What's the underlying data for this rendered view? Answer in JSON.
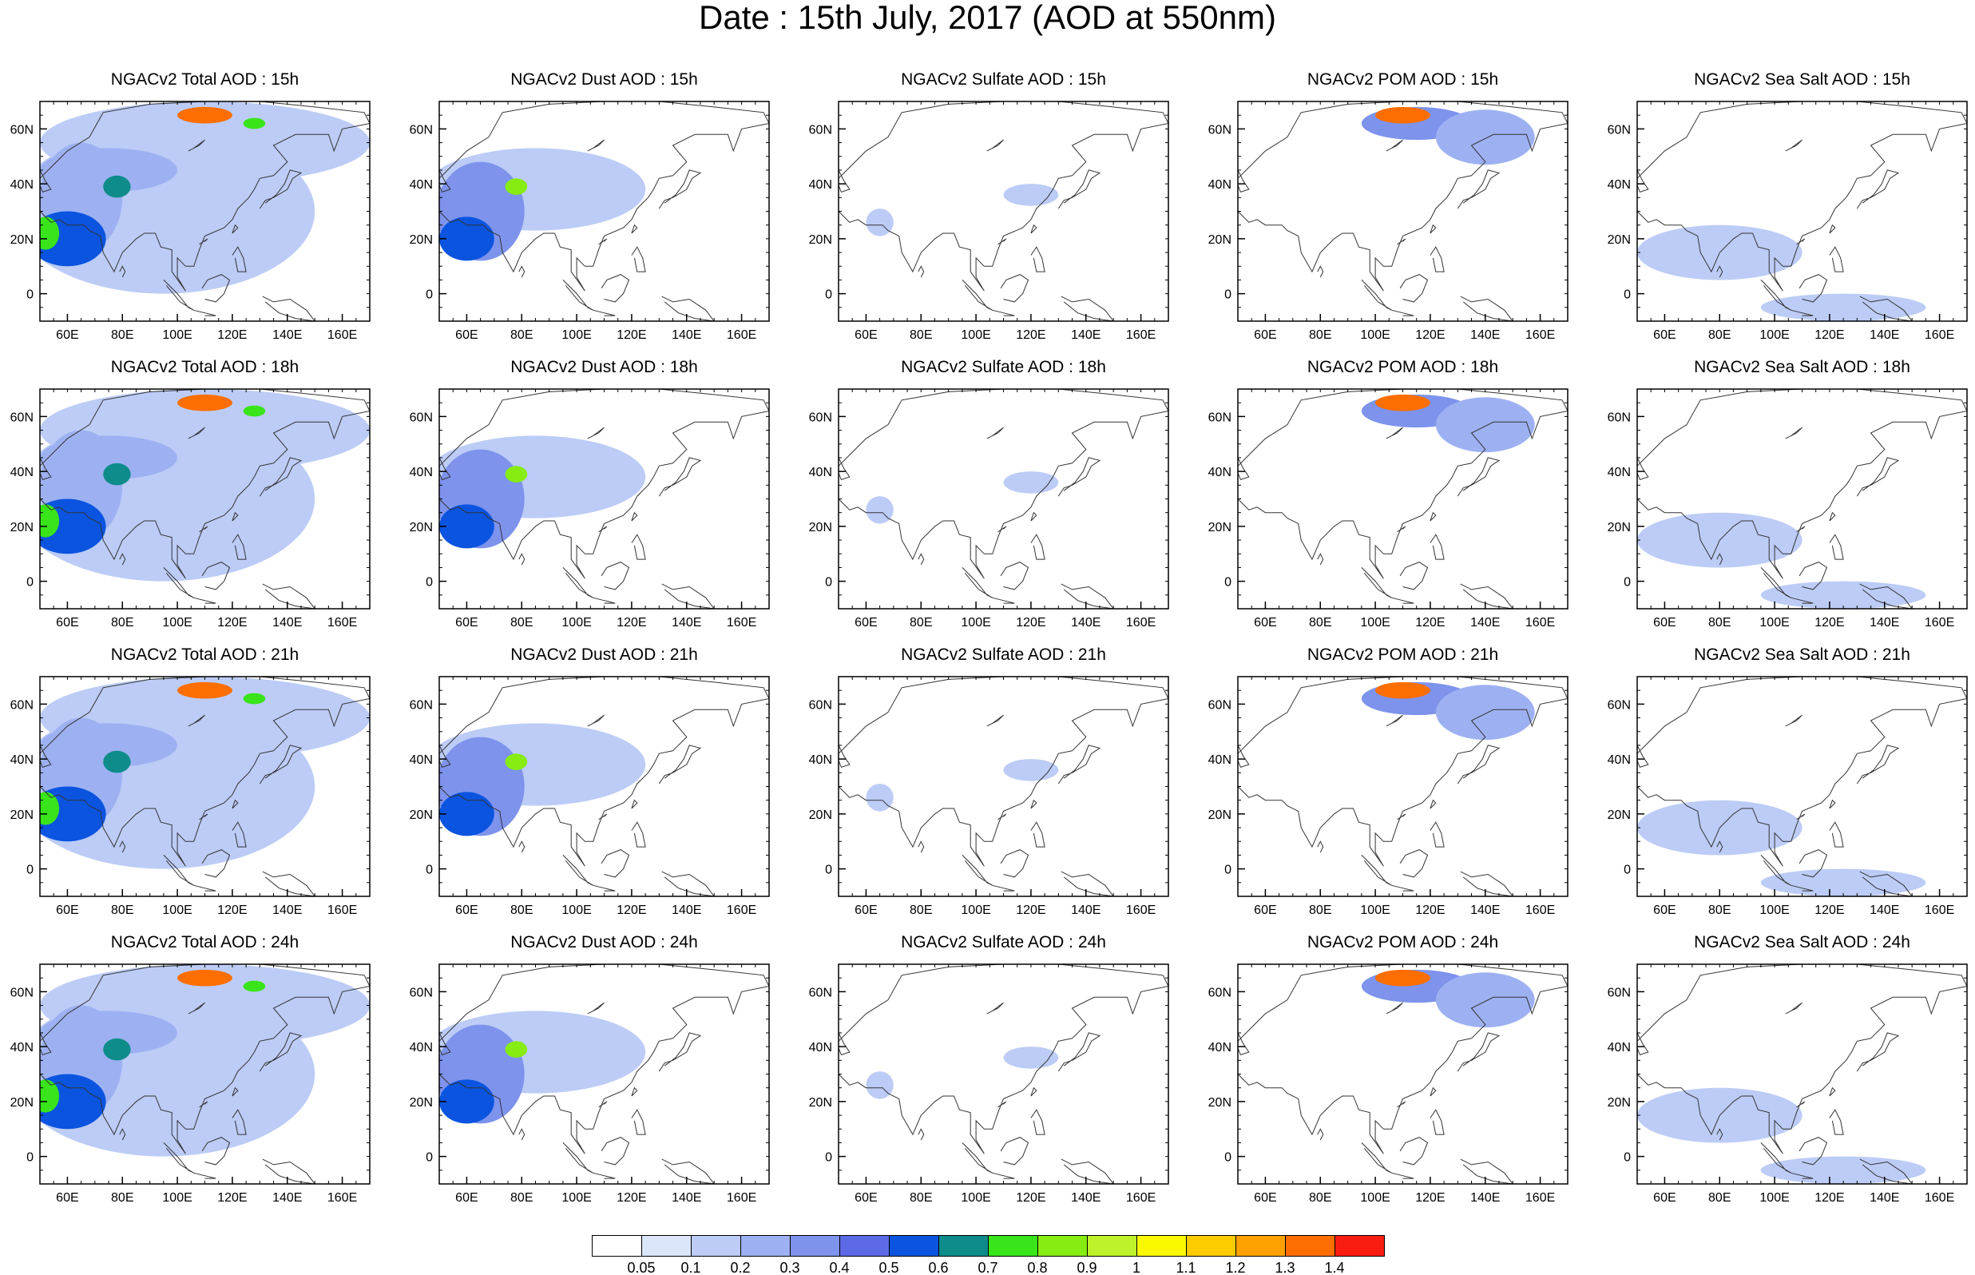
{
  "title": "Date : 15th July, 2017 (AOD at 550nm)",
  "panels": [
    {
      "row": 0,
      "col": 0,
      "species": "total",
      "title": "NGACv2 Total AOD : 15h"
    },
    {
      "row": 0,
      "col": 1,
      "species": "dust",
      "title": "NGACv2 Dust AOD : 15h"
    },
    {
      "row": 0,
      "col": 2,
      "species": "sulfate",
      "title": "NGACv2 Sulfate AOD : 15h"
    },
    {
      "row": 0,
      "col": 3,
      "species": "pom",
      "title": "NGACv2 POM AOD : 15h"
    },
    {
      "row": 0,
      "col": 4,
      "species": "seasalt",
      "title": "NGACv2 Sea Salt AOD : 15h"
    },
    {
      "row": 1,
      "col": 0,
      "species": "total",
      "title": "NGACv2 Total AOD : 18h"
    },
    {
      "row": 1,
      "col": 1,
      "species": "dust",
      "title": "NGACv2 Dust AOD : 18h"
    },
    {
      "row": 1,
      "col": 2,
      "species": "sulfate",
      "title": "NGACv2 Sulfate AOD : 18h"
    },
    {
      "row": 1,
      "col": 3,
      "species": "pom",
      "title": "NGACv2 POM AOD : 18h"
    },
    {
      "row": 1,
      "col": 4,
      "species": "seasalt",
      "title": "NGACv2 Sea Salt AOD : 18h"
    },
    {
      "row": 2,
      "col": 0,
      "species": "total",
      "title": "NGACv2 Total AOD : 21h"
    },
    {
      "row": 2,
      "col": 1,
      "species": "dust",
      "title": "NGACv2 Dust AOD : 21h"
    },
    {
      "row": 2,
      "col": 2,
      "species": "sulfate",
      "title": "NGACv2 Sulfate AOD : 21h"
    },
    {
      "row": 2,
      "col": 3,
      "species": "pom",
      "title": "NGACv2 POM AOD : 21h"
    },
    {
      "row": 2,
      "col": 4,
      "species": "seasalt",
      "title": "NGACv2 Sea Salt AOD : 21h"
    },
    {
      "row": 3,
      "col": 0,
      "species": "total",
      "title": "NGACv2 Total AOD : 24h"
    },
    {
      "row": 3,
      "col": 1,
      "species": "dust",
      "title": "NGACv2 Dust AOD : 24h"
    },
    {
      "row": 3,
      "col": 2,
      "species": "sulfate",
      "title": "NGACv2 Sulfate AOD : 24h"
    },
    {
      "row": 3,
      "col": 3,
      "species": "pom",
      "title": "NGACv2 POM AOD : 24h"
    },
    {
      "row": 3,
      "col": 4,
      "species": "seasalt",
      "title": "NGACv2 Sea Salt  AOD : 24h"
    }
  ],
  "map": {
    "lon_range": [
      50,
      170
    ],
    "lat_range": [
      -10,
      70
    ],
    "lon_ticks": [
      {
        "v": 60,
        "label": "60E"
      },
      {
        "v": 80,
        "label": "80E"
      },
      {
        "v": 100,
        "label": "100E"
      },
      {
        "v": 120,
        "label": "120E"
      },
      {
        "v": 140,
        "label": "140E"
      },
      {
        "v": 160,
        "label": "160E"
      }
    ],
    "lat_ticks": [
      {
        "v": 60,
        "label": "60N"
      },
      {
        "v": 40,
        "label": "40N"
      },
      {
        "v": 20,
        "label": "20N"
      },
      {
        "v": 0,
        "label": "0"
      }
    ]
  },
  "colorbar": {
    "labels": [
      "0.05",
      "0.1",
      "0.2",
      "0.3",
      "0.4",
      "0.5",
      "0.6",
      "0.7",
      "0.8",
      "0.9",
      "1",
      "1.1",
      "1.2",
      "1.3",
      "1.4"
    ],
    "colors": [
      "#ffffff",
      "#dce6fb",
      "#bcccf6",
      "#9db1f2",
      "#7d93ec",
      "#5d6ae6",
      "#0a54e0",
      "#0d8c8a",
      "#39e41a",
      "#86ec12",
      "#bff22b",
      "#fbf900",
      "#fccb00",
      "#fda100",
      "#fc6e00",
      "#f81d10"
    ]
  },
  "aod_fields": {
    "total": [
      {
        "lon": 95,
        "lat": 30,
        "rx": 55,
        "ry": 30,
        "v": 0.15
      },
      {
        "lon": 110,
        "lat": 55,
        "rx": 60,
        "ry": 15,
        "v": 0.15
      },
      {
        "lon": 65,
        "lat": 35,
        "rx": 15,
        "ry": 20,
        "v": 0.25
      },
      {
        "lon": 75,
        "lat": 45,
        "rx": 25,
        "ry": 8,
        "v": 0.25
      },
      {
        "lon": 60,
        "lat": 20,
        "rx": 14,
        "ry": 10,
        "v": 0.5
      },
      {
        "lon": 52,
        "lat": 22,
        "rx": 5,
        "ry": 6,
        "v": 0.75
      },
      {
        "lon": 78,
        "lat": 39,
        "rx": 5,
        "ry": 4,
        "v": 0.6
      },
      {
        "lon": 110,
        "lat": 65,
        "rx": 10,
        "ry": 3,
        "v": 1.3
      },
      {
        "lon": 128,
        "lat": 62,
        "rx": 4,
        "ry": 2,
        "v": 0.75
      }
    ],
    "dust": [
      {
        "lon": 85,
        "lat": 38,
        "rx": 40,
        "ry": 15,
        "v": 0.15
      },
      {
        "lon": 65,
        "lat": 30,
        "rx": 16,
        "ry": 18,
        "v": 0.3
      },
      {
        "lon": 60,
        "lat": 20,
        "rx": 10,
        "ry": 8,
        "v": 0.5
      },
      {
        "lon": 78,
        "lat": 39,
        "rx": 4,
        "ry": 3,
        "v": 0.85
      }
    ],
    "sulfate": [
      {
        "lon": 120,
        "lat": 36,
        "rx": 10,
        "ry": 4,
        "v": 0.15
      },
      {
        "lon": 65,
        "lat": 26,
        "rx": 5,
        "ry": 5,
        "v": 0.15
      }
    ],
    "pom": [
      {
        "lon": 115,
        "lat": 62,
        "rx": 20,
        "ry": 6,
        "v": 0.3
      },
      {
        "lon": 110,
        "lat": 65,
        "rx": 10,
        "ry": 3,
        "v": 1.3
      },
      {
        "lon": 140,
        "lat": 57,
        "rx": 18,
        "ry": 10,
        "v": 0.2
      }
    ],
    "seasalt": [
      {
        "lon": 80,
        "lat": 15,
        "rx": 30,
        "ry": 10,
        "v": 0.15
      },
      {
        "lon": 125,
        "lat": -5,
        "rx": 30,
        "ry": 5,
        "v": 0.12
      }
    ]
  }
}
